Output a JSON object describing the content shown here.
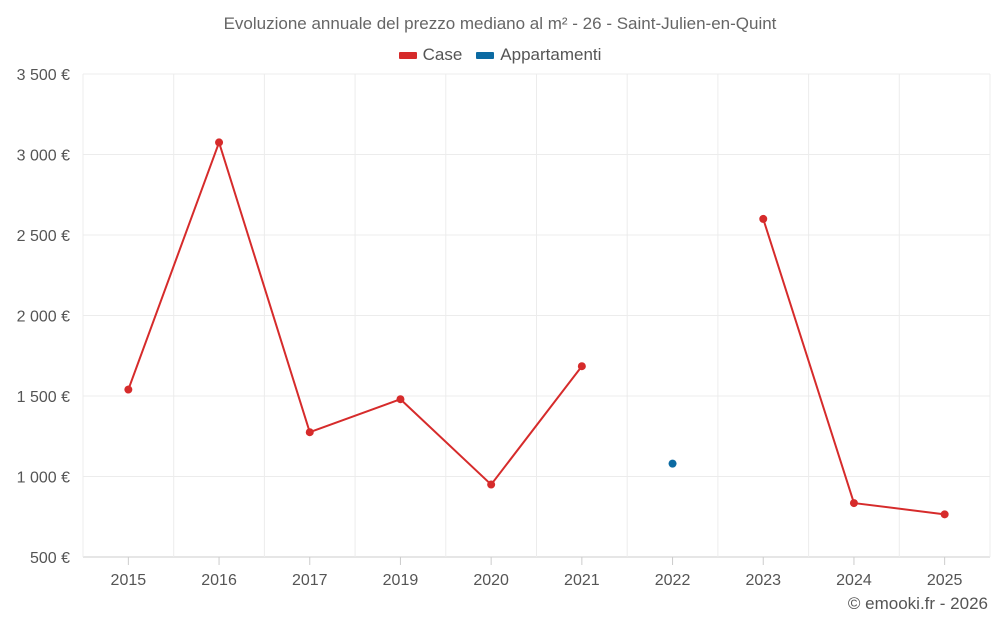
{
  "chart_data": {
    "type": "line",
    "title": "Evoluzione annuale del prezzo mediano al m² - 26 - Saint-Julien-en-Quint",
    "categories": [
      "2015",
      "2016",
      "2017",
      "2019",
      "2020",
      "2021",
      "2022",
      "2023",
      "2024",
      "2025"
    ],
    "y_ticks": [
      "3 500 €",
      "3 000 €",
      "2 500 €",
      "2 000 €",
      "1 500 €",
      "1 000 €",
      "500 €"
    ],
    "y_tick_values": [
      3500,
      3000,
      2500,
      2000,
      1500,
      1000,
      500
    ],
    "ylim": [
      500,
      3500
    ],
    "grid": true,
    "legend_position": "top-center",
    "series": [
      {
        "name": "Case",
        "color": "#d62b2b",
        "values": [
          1540,
          3075,
          1275,
          1480,
          950,
          1685,
          null,
          2600,
          835,
          765
        ]
      },
      {
        "name": "Appartamenti",
        "color": "#0b6aa2",
        "values": [
          null,
          null,
          null,
          null,
          null,
          null,
          1080,
          null,
          null,
          null
        ]
      }
    ]
  },
  "credit": "© emooki.fr - 2026"
}
